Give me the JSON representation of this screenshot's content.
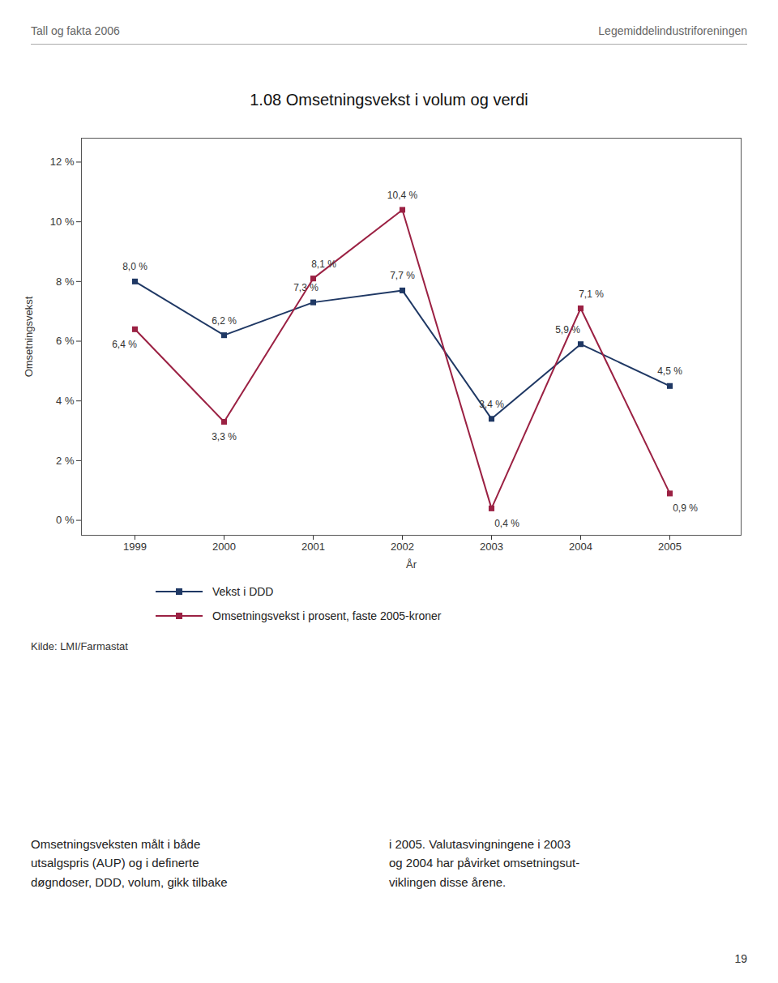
{
  "chart_data": {
    "type": "line",
    "title": "1.08 Omsetningsvekst i volum og verdi",
    "header": [
      "Tall og fakta 2006",
      "Legemiddelindustriforeningen"
    ],
    "source": "Kilde: LMI/Farmastat",
    "footnote": [
      "Omsetningsveksten målt i både\nutsalgspris (AUP) og i definerte\ndøgndoser, DDD, volum, gikk tilbake",
      "i 2005. Valutasvingningene i 2003\nog 2004 har påvirket omsetningsut-\nviklingen disse årene."
    ],
    "page_number": "19",
    "xlabel": "År",
    "ylabel": "Omsetningsvekst",
    "x": [
      1999,
      2000,
      2001,
      2002,
      2003,
      2004,
      2005
    ],
    "series": [
      {
        "name": "Vekst i DDD",
        "color": "#1f3864",
        "marker": "square",
        "line_style": "solid",
        "values": [
          8.0,
          6.2,
          7.3,
          7.7,
          3.4,
          5.9,
          4.5
        ],
        "value_labels": [
          "8,0 %",
          "6,2 %",
          "7,3 %",
          "7,7 %",
          "3,4 %",
          "5,9 %",
          "4,5 %"
        ]
      },
      {
        "name": "Omsetningsvekst i prosent, faste 2005-kroner",
        "color": "#9b2143",
        "marker": "square",
        "line_style": "solid",
        "values": [
          6.4,
          3.3,
          8.1,
          10.4,
          0.4,
          7.1,
          0.9
        ],
        "value_labels": [
          "6,4 %",
          "3,3 %",
          "8,1 %",
          "10,4 %",
          "0,4 %",
          "7,1 %",
          "0,9 %"
        ]
      }
    ],
    "xlim": [
      1998.4,
      2005.8
    ],
    "xticks": [
      1999,
      2000,
      2001,
      2002,
      2003,
      2004,
      2005
    ],
    "ylim": [
      -0.5,
      12.8
    ],
    "yticks": [
      {
        "value": 0,
        "label": "0 %"
      },
      {
        "value": 2,
        "label": "2 %"
      },
      {
        "value": 4,
        "label": "4 %"
      },
      {
        "value": 6,
        "label": "6 %"
      },
      {
        "value": 8,
        "label": "8 %"
      },
      {
        "value": 10,
        "label": "10 %"
      },
      {
        "value": 12,
        "label": "12 %"
      }
    ],
    "grid": false,
    "legend": "bottom",
    "data_labels": true
  }
}
